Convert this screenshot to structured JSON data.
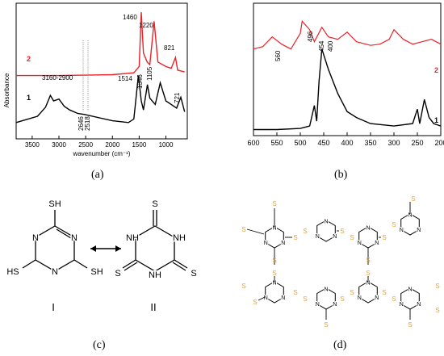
{
  "panel_a": {
    "caption": "(a)",
    "xlabel": "wavenumber (cm⁻¹)",
    "ylabel": "Absorbance",
    "xticks": [
      "3500",
      "3000",
      "2500",
      "2000",
      "1500",
      "1000"
    ],
    "series_labels": [
      "1",
      "2"
    ],
    "annotations": {
      "a3160": "3160-2900",
      "a1460": "1460",
      "a1220": "1220",
      "a821": "821",
      "a1514": "1514",
      "a1346": "1346",
      "a1105": "1105",
      "a721": "721",
      "a2646": "2646",
      "a2518": "2518"
    }
  },
  "panel_b": {
    "caption": "(b)",
    "xticks": [
      "600",
      "550",
      "500",
      "450",
      "400",
      "350",
      "300",
      "250",
      "200"
    ],
    "series_labels": [
      "1",
      "2"
    ],
    "annotations": {
      "a560": "560",
      "a496": "496",
      "a454": "454",
      "a400": "400"
    }
  },
  "panel_c": {
    "caption": "(c)",
    "label_I": "I",
    "label_II": "II",
    "atoms": {
      "SH": "SH",
      "HS": "HS",
      "N": "N",
      "NH": "NH",
      "S": "S"
    }
  },
  "panel_d": {
    "caption": "(d)",
    "atoms": {
      "S": "S",
      "N": "N",
      "NH": "NH",
      "H": "H"
    }
  },
  "colors": {
    "red_series": "#e8232a",
    "black_series": "#000000",
    "sulfur": "#e8a33c",
    "grid_dotted": "#888888"
  },
  "chart_data": [
    {
      "type": "line",
      "title": "",
      "xlabel": "wavenumber (cm⁻¹)",
      "ylabel": "Absorbance",
      "xlim": [
        3800,
        600
      ],
      "xreversed": true,
      "series": [
        {
          "name": "1",
          "x": [
            3800,
            3400,
            3250,
            3160,
            3100,
            3000,
            2900,
            2800,
            2646,
            2518,
            2000,
            1700,
            1600,
            1514,
            1460,
            1420,
            1346,
            1300,
            1200,
            1105,
            1000,
            900,
            800,
            721,
            650
          ],
          "y": [
            0.18,
            0.25,
            0.35,
            0.48,
            0.42,
            0.44,
            0.36,
            0.32,
            0.28,
            0.27,
            0.2,
            0.18,
            0.22,
            0.7,
            0.42,
            0.32,
            0.6,
            0.45,
            0.38,
            0.62,
            0.42,
            0.38,
            0.34,
            0.46,
            0.3
          ]
        },
        {
          "name": "2",
          "x": [
            3800,
            3000,
            2000,
            1600,
            1500,
            1460,
            1420,
            1350,
            1300,
            1220,
            1150,
            1000,
            900,
            821,
            780,
            650
          ],
          "y": [
            0.7,
            0.7,
            0.71,
            0.73,
            0.8,
            1.4,
            0.95,
            0.85,
            0.82,
            1.3,
            0.85,
            0.8,
            0.78,
            0.9,
            0.76,
            0.74
          ]
        }
      ],
      "marker_lines_x": [
        2646,
        2518
      ]
    },
    {
      "type": "line",
      "title": "",
      "xlabel": "",
      "ylabel": "",
      "xlim": [
        600,
        200
      ],
      "xreversed": true,
      "series": [
        {
          "name": "1",
          "x": [
            600,
            550,
            500,
            480,
            470,
            465,
            460,
            454,
            440,
            420,
            400,
            380,
            350,
            300,
            260,
            250,
            245,
            235,
            225,
            215,
            200
          ],
          "y": [
            0.05,
            0.05,
            0.06,
            0.08,
            0.25,
            0.12,
            0.45,
            0.72,
            0.55,
            0.35,
            0.2,
            0.15,
            0.1,
            0.08,
            0.1,
            0.22,
            0.1,
            0.3,
            0.15,
            0.1,
            0.08
          ]
        },
        {
          "name": "2",
          "x": [
            600,
            580,
            560,
            540,
            520,
            500,
            496,
            480,
            470,
            454,
            440,
            420,
            400,
            380,
            350,
            330,
            310,
            300,
            280,
            260,
            240,
            220,
            200
          ],
          "y": [
            0.72,
            0.74,
            0.82,
            0.76,
            0.72,
            0.85,
            0.95,
            0.88,
            0.78,
            0.9,
            0.82,
            0.8,
            0.86,
            0.78,
            0.75,
            0.76,
            0.8,
            0.88,
            0.8,
            0.76,
            0.78,
            0.8,
            0.76
          ]
        }
      ]
    }
  ]
}
